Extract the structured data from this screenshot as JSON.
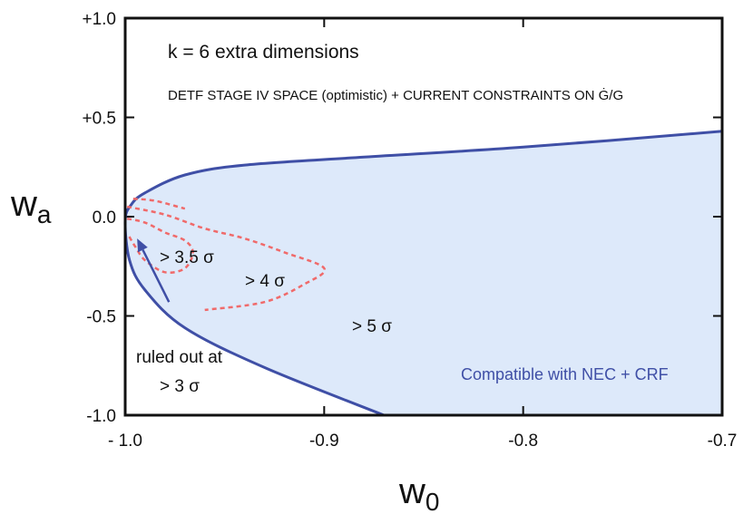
{
  "chart_data": {
    "type": "area",
    "title": "k = 6 extra dimensions",
    "subtitle": "DETF STAGE IV SPACE (optimistic) + CURRENT  CONSTRAINTS ON Ġ/G",
    "xlabel": "w",
    "xlabel_sub": "0",
    "ylabel": "w",
    "ylabel_sub": "a",
    "xlim": [
      -1.0,
      -0.7
    ],
    "ylim": [
      -1.0,
      1.0
    ],
    "x_ticks": [
      -1.0,
      -0.9,
      -0.8,
      -0.7
    ],
    "x_tick_labels": [
      "- 1.0",
      "-0.9",
      "-0.8",
      "-0.7"
    ],
    "y_ticks": [
      1.0,
      0.5,
      0.0,
      -0.5,
      -1.0
    ],
    "y_tick_labels": [
      "+1.0",
      "+0.5",
      "0.0",
      "-0.5",
      "-1.0"
    ],
    "colors": {
      "region_fill": "#dde9fa",
      "boundary": "#3f4fa6",
      "contour": "#f06a6a"
    },
    "series": [
      {
        "name": "NEC + CRF boundary",
        "style": "solid",
        "points": [
          [
            -0.87,
            -1.0
          ],
          [
            -0.93,
            -0.76
          ],
          [
            -0.97,
            -0.56
          ],
          [
            -0.99,
            -0.37
          ],
          [
            -0.9978,
            -0.22
          ],
          [
            -1.0,
            -0.02
          ],
          [
            -0.997,
            0.06
          ],
          [
            -0.99,
            0.12
          ],
          [
            -0.97,
            0.21
          ],
          [
            -0.94,
            0.26
          ],
          [
            -0.88,
            0.3
          ],
          [
            -0.8,
            0.35
          ],
          [
            -0.7,
            0.43
          ]
        ]
      },
      {
        "name": "3.5 sigma contour",
        "style": "dashed",
        "points": [
          [
            -0.999,
            -0.01
          ],
          [
            -0.99,
            -0.03
          ],
          [
            -0.98,
            -0.08
          ],
          [
            -0.97,
            -0.12
          ],
          [
            -0.966,
            -0.18
          ],
          [
            -0.97,
            -0.26
          ],
          [
            -0.98,
            -0.28
          ],
          [
            -0.99,
            -0.22
          ],
          [
            -0.995,
            -0.15
          ],
          [
            -0.998,
            -0.1
          ]
        ]
      },
      {
        "name": "4 sigma contour",
        "style": "dashed",
        "points": [
          [
            -0.999,
            0.05
          ],
          [
            -0.98,
            0.01
          ],
          [
            -0.96,
            -0.06
          ],
          [
            -0.94,
            -0.11
          ],
          [
            -0.92,
            -0.18
          ],
          [
            -0.9,
            -0.26
          ],
          [
            -0.91,
            -0.34
          ],
          [
            -0.93,
            -0.43
          ],
          [
            -0.96,
            -0.47
          ]
        ]
      },
      {
        "name": "outer dashed contour",
        "style": "dashed",
        "points": [
          [
            -0.996,
            0.09
          ],
          [
            -0.985,
            0.08
          ],
          [
            -0.97,
            0.04
          ]
        ]
      }
    ],
    "annotations": [
      {
        "text": "> 3.5 σ",
        "x": -0.98,
        "y": -0.2
      },
      {
        "text": "> 4 σ",
        "x": -0.945,
        "y": -0.31
      },
      {
        "text": "> 5 σ",
        "x": -0.887,
        "y": -0.54
      },
      {
        "text": "Compatible with NEC + CRF",
        "x": -0.774,
        "y": -0.8
      }
    ],
    "arrow": {
      "label_line1": "ruled out at",
      "label_line2": "> 3 σ",
      "from": [
        -0.978,
        -0.43
      ],
      "to": [
        -0.994,
        -0.11
      ]
    }
  }
}
